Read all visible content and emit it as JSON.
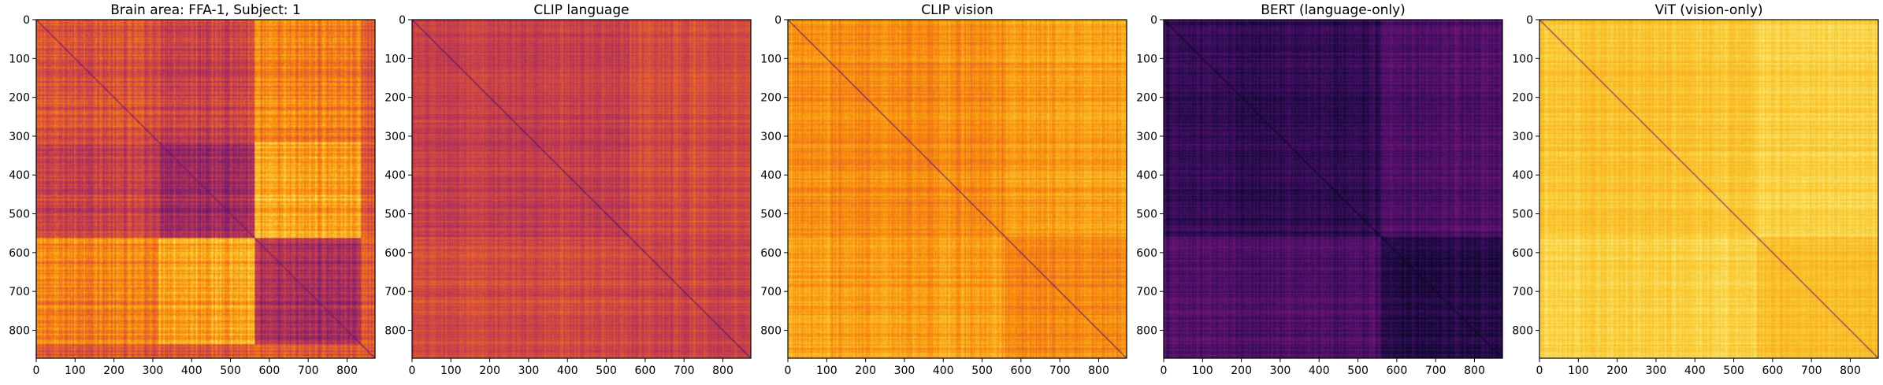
{
  "chart_data": [
    {
      "type": "heatmap",
      "title": "Brain area: FFA-1, Subject: 1",
      "colormap": "inferno",
      "xlim": [
        0,
        872
      ],
      "ylim": [
        872,
        0
      ],
      "xticks": [
        0,
        100,
        200,
        300,
        400,
        500,
        600,
        700,
        800
      ],
      "yticks": [
        0,
        100,
        200,
        300,
        400,
        500,
        600,
        700,
        800
      ],
      "block_boundaries": [
        315,
        563,
        835
      ],
      "base_level": 0.62,
      "block_levels": [
        [
          0.6,
          0.55,
          0.72
        ],
        [
          0.55,
          0.45,
          0.8
        ],
        [
          0.72,
          0.8,
          0.45
        ]
      ],
      "noise": 0.07,
      "diagonal_level": 0.3
    },
    {
      "type": "heatmap",
      "title": "CLIP language",
      "colormap": "inferno",
      "xlim": [
        0,
        872
      ],
      "ylim": [
        872,
        0
      ],
      "xticks": [
        0,
        100,
        200,
        300,
        400,
        500,
        600,
        700,
        800
      ],
      "yticks": [
        0,
        100,
        200,
        300,
        400,
        500,
        600,
        700,
        800
      ],
      "block_boundaries": [
        560
      ],
      "base_level": 0.56,
      "block_levels": [
        [
          0.53,
          0.58
        ],
        [
          0.58,
          0.56
        ]
      ],
      "noise": 0.05,
      "diagonal_level": 0.25
    },
    {
      "type": "heatmap",
      "title": "CLIP vision",
      "colormap": "inferno",
      "xlim": [
        0,
        872
      ],
      "ylim": [
        872,
        0
      ],
      "xticks": [
        0,
        100,
        200,
        300,
        400,
        500,
        600,
        700,
        800
      ],
      "yticks": [
        0,
        100,
        200,
        300,
        400,
        500,
        600,
        700,
        800
      ],
      "block_boundaries": [
        560
      ],
      "base_level": 0.76,
      "block_levels": [
        [
          0.75,
          0.79
        ],
        [
          0.79,
          0.74
        ]
      ],
      "noise": 0.05,
      "diagonal_level": 0.3
    },
    {
      "type": "heatmap",
      "title": "BERT (language-only)",
      "colormap": "inferno",
      "xlim": [
        0,
        872
      ],
      "ylim": [
        872,
        0
      ],
      "xticks": [
        0,
        100,
        200,
        300,
        400,
        500,
        600,
        700,
        800
      ],
      "yticks": [
        0,
        100,
        200,
        300,
        400,
        500,
        600,
        700,
        800
      ],
      "block_boundaries": [
        560
      ],
      "base_level": 0.2,
      "block_levels": [
        [
          0.17,
          0.24
        ],
        [
          0.24,
          0.14
        ]
      ],
      "noise": 0.05,
      "diagonal_level": 0.05
    },
    {
      "type": "heatmap",
      "title": "ViT (vision-only)",
      "colormap": "inferno",
      "xlim": [
        0,
        872
      ],
      "ylim": [
        872,
        0
      ],
      "xticks": [
        0,
        100,
        200,
        300,
        400,
        500,
        600,
        700,
        800
      ],
      "yticks": [
        0,
        100,
        200,
        300,
        400,
        500,
        600,
        700,
        800
      ],
      "block_boundaries": [
        560
      ],
      "base_level": 0.87,
      "block_levels": [
        [
          0.87,
          0.9
        ],
        [
          0.9,
          0.86
        ]
      ],
      "noise": 0.03,
      "diagonal_level": 0.35
    }
  ]
}
